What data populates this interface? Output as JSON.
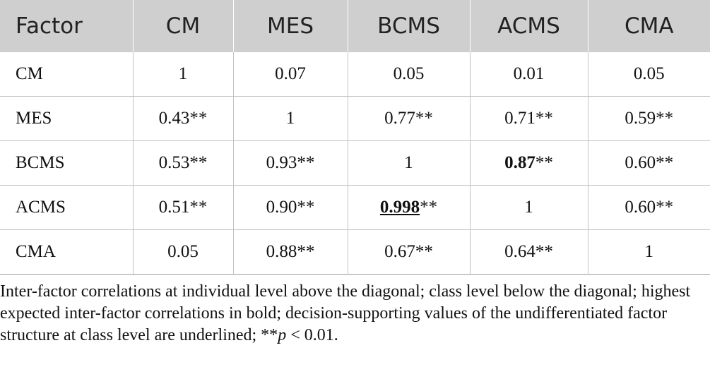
{
  "table": {
    "headers": [
      "Factor",
      "CM",
      "MES",
      "BCMS",
      "ACMS",
      "CMA"
    ],
    "rows": [
      {
        "label": "CM",
        "cells": [
          {
            "v": "1"
          },
          {
            "v": "0.07"
          },
          {
            "v": "0.05"
          },
          {
            "v": "0.01"
          },
          {
            "v": "0.05"
          }
        ]
      },
      {
        "label": "MES",
        "cells": [
          {
            "v": "0.43**"
          },
          {
            "v": "1"
          },
          {
            "v": "0.77**"
          },
          {
            "v": "0.71**"
          },
          {
            "v": "0.59**"
          }
        ]
      },
      {
        "label": "BCMS",
        "cells": [
          {
            "v": "0.53**"
          },
          {
            "v": "0.93**"
          },
          {
            "v": "1"
          },
          {
            "v": "0.87",
            "suffix": "**",
            "style": "bold"
          },
          {
            "v": "0.60**"
          }
        ]
      },
      {
        "label": "ACMS",
        "cells": [
          {
            "v": "0.51**"
          },
          {
            "v": "0.90**"
          },
          {
            "v": "0.998",
            "suffix": "**",
            "style": "bold-underline"
          },
          {
            "v": "1"
          },
          {
            "v": "0.60**"
          }
        ]
      },
      {
        "label": "CMA",
        "cells": [
          {
            "v": "0.05"
          },
          {
            "v": "0.88**"
          },
          {
            "v": "0.67**"
          },
          {
            "v": "0.64**"
          },
          {
            "v": "1"
          }
        ]
      }
    ]
  },
  "note": {
    "text": "Inter-factor correlations at individual level above the diagonal; class level below the diagonal; highest expected inter-factor correlations in bold; decision-supporting values of the undifferentiated factor structure at class level are underlined; **",
    "p_symbol": "p",
    "tail": " < 0.01."
  }
}
